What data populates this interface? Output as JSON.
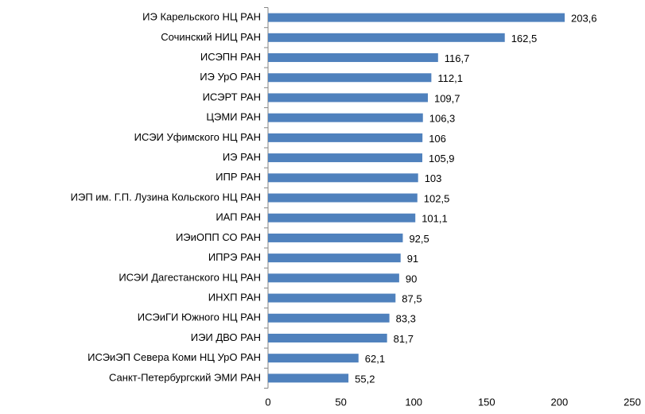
{
  "chart_data": {
    "type": "bar",
    "orientation": "horizontal",
    "categories": [
      "ИЭ Карельского НЦ РАН",
      "Сочинский НИЦ РАН",
      "ИСЭПН РАН",
      "ИЭ УрО РАН",
      "ИСЭРТ РАН",
      "ЦЭМИ РАН",
      "ИСЭИ Уфимского НЦ РАН",
      "ИЭ РАН",
      "ИПР РАН",
      "ИЭП им. Г.П. Лузина Кольского НЦ РАН",
      "ИАП РАН",
      "ИЭиОПП СО РАН",
      "ИПРЭ РАН",
      "ИСЭИ Дагестанского НЦ РАН",
      "ИНХП РАН",
      "ИСЭиГИ Южного НЦ РАН",
      "ИЭИ ДВО РАН",
      "ИСЭиЭП Севера Коми НЦ УрО РАН",
      "Санкт-Петербургский ЭМИ РАН"
    ],
    "values": [
      203.6,
      162.5,
      116.7,
      112.1,
      109.7,
      106.3,
      106,
      105.9,
      103,
      102.5,
      101.1,
      92.5,
      91,
      90,
      87.5,
      83.3,
      81.7,
      62.1,
      55.2
    ],
    "value_labels": [
      "203,6",
      "162,5",
      "116,7",
      "112,1",
      "109,7",
      "106,3",
      "106",
      "105,9",
      "103",
      "102,5",
      "101,1",
      "92,5",
      "91",
      "90",
      "87,5",
      "83,3",
      "81,7",
      "62,1",
      "55,2"
    ],
    "color": "#4f81bd",
    "xlim": [
      0,
      250
    ],
    "xticks": [
      0,
      50,
      100,
      150,
      200,
      250
    ],
    "grid": false
  }
}
